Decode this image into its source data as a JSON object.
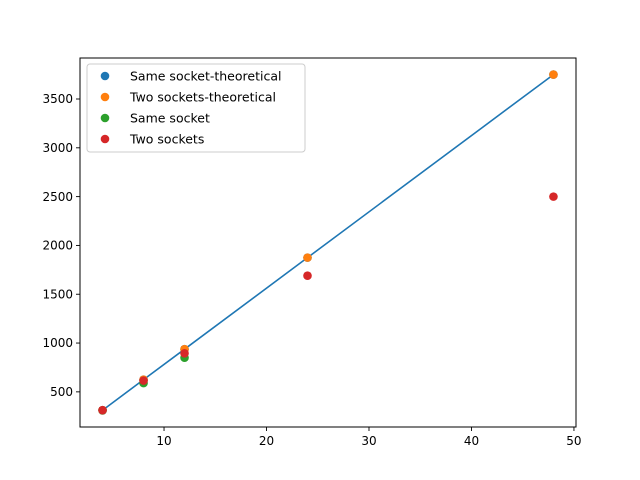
{
  "chart_data": {
    "type": "scatter",
    "title": "",
    "xlabel": "",
    "ylabel": "",
    "xlim": [
      1.8,
      50.2
    ],
    "ylim": [
      140,
      3920
    ],
    "xticks": [
      10,
      20,
      30,
      40,
      50
    ],
    "yticks": [
      500,
      1000,
      1500,
      2000,
      2500,
      3000,
      3500
    ],
    "grid": false,
    "legend_position": "top-left",
    "line": {
      "color": "#1f77b4",
      "x": [
        4,
        8,
        12,
        24,
        48
      ],
      "y": [
        312,
        625,
        937,
        1875,
        3750
      ]
    },
    "series": [
      {
        "name": "Same socket-theoretical",
        "color": "#1f77b4",
        "x": [
          4,
          8,
          12,
          24,
          48
        ],
        "y": [
          312,
          625,
          937,
          1875,
          3750
        ]
      },
      {
        "name": "Two sockets-theoretical",
        "color": "#ff7f0e",
        "x": [
          4,
          8,
          12,
          24,
          48
        ],
        "y": [
          312,
          625,
          937,
          1875,
          3750
        ]
      },
      {
        "name": "Same socket",
        "color": "#2ca02c",
        "x": [
          4,
          8,
          12
        ],
        "y": [
          310,
          590,
          850
        ]
      },
      {
        "name": "Two sockets",
        "color": "#d62728",
        "x": [
          4,
          8,
          12,
          24,
          48
        ],
        "y": [
          312,
          615,
          895,
          1690,
          2500
        ]
      }
    ]
  }
}
